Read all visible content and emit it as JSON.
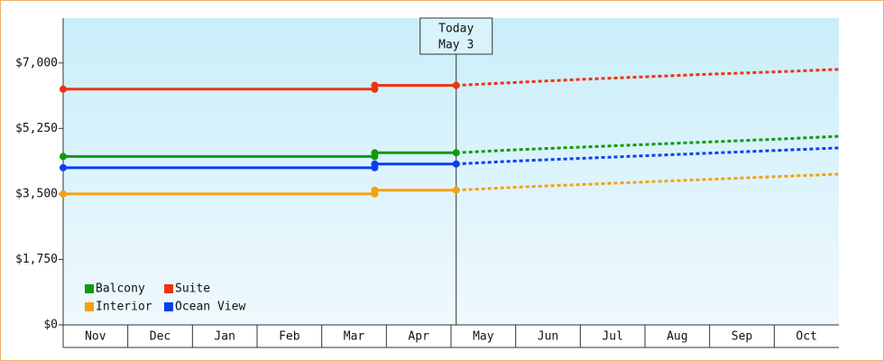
{
  "chart_data": {
    "type": "line",
    "categories": [
      "Nov",
      "Dec",
      "Jan",
      "Feb",
      "Mar",
      "Apr",
      "May",
      "Jun",
      "Jul",
      "Aug",
      "Sep",
      "Oct"
    ],
    "x": [
      0,
      4.82,
      4.82,
      6.08,
      7,
      8,
      9,
      10,
      11,
      12
    ],
    "xlim": [
      0,
      12
    ],
    "forecast_from": 6.08,
    "ylim": [
      0,
      8200
    ],
    "yticks": [
      {
        "value": 0,
        "label": "$0"
      },
      {
        "value": 1750,
        "label": "$1,750"
      },
      {
        "value": 3500,
        "label": "$3,500"
      },
      {
        "value": 5250,
        "label": "$5,250"
      },
      {
        "value": 7000,
        "label": "$7,000"
      }
    ],
    "annotation": {
      "x": 6.08,
      "lines": [
        "Today",
        "May 3"
      ]
    },
    "legend": "lower left",
    "series": [
      {
        "name": "Balcony",
        "color": "#119911",
        "values": [
          4500,
          4500,
          4600,
          4600,
          4680,
          4750,
          4820,
          4890,
          4960,
          5040
        ]
      },
      {
        "name": "Suite",
        "color": "#ee3311",
        "values": [
          6300,
          6300,
          6400,
          6400,
          6480,
          6560,
          6630,
          6700,
          6760,
          6830
        ]
      },
      {
        "name": "Interior",
        "color": "#f5a00f",
        "values": [
          3500,
          3500,
          3600,
          3600,
          3680,
          3750,
          3820,
          3890,
          3960,
          4030
        ]
      },
      {
        "name": "Ocean View",
        "color": "#0a3ff0",
        "values": [
          4200,
          4200,
          4300,
          4300,
          4380,
          4450,
          4520,
          4590,
          4660,
          4730
        ]
      }
    ]
  }
}
